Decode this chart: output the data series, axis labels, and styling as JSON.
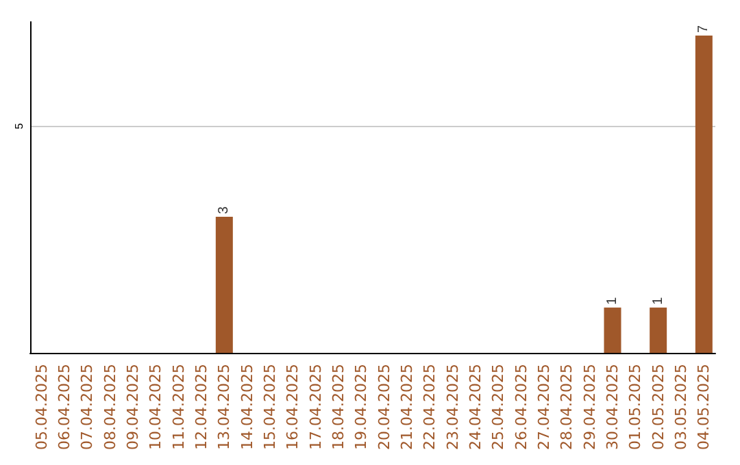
{
  "chart_data": {
    "type": "bar",
    "categories": [
      "05.04.2025",
      "06.04.2025",
      "07.04.2025",
      "08.04.2025",
      "09.04.2025",
      "10.04.2025",
      "11.04.2025",
      "12.04.2025",
      "13.04.2025",
      "14.04.2025",
      "15.04.2025",
      "16.04.2025",
      "17.04.2025",
      "18.04.2025",
      "19.04.2025",
      "20.04.2025",
      "21.04.2025",
      "22.04.2025",
      "23.04.2025",
      "24.04.2025",
      "25.04.2025",
      "26.04.2025",
      "27.04.2025",
      "28.04.2025",
      "29.04.2025",
      "30.04.2025",
      "01.05.2025",
      "02.05.2025",
      "03.05.2025",
      "04.05.2025"
    ],
    "values": [
      0,
      0,
      0,
      0,
      0,
      0,
      0,
      0,
      3,
      0,
      0,
      0,
      0,
      0,
      0,
      0,
      0,
      0,
      0,
      0,
      0,
      0,
      0,
      0,
      0,
      1,
      0,
      1,
      0,
      7
    ],
    "value_labels": [
      null,
      null,
      null,
      null,
      null,
      null,
      null,
      null,
      "3",
      null,
      null,
      null,
      null,
      null,
      null,
      null,
      null,
      null,
      null,
      null,
      null,
      null,
      null,
      null,
      null,
      "1",
      null,
      "1",
      null,
      "7"
    ],
    "color": "#a0582a",
    "ylim": [
      0,
      7.3
    ],
    "yticks": [
      5
    ],
    "grid": "y"
  }
}
